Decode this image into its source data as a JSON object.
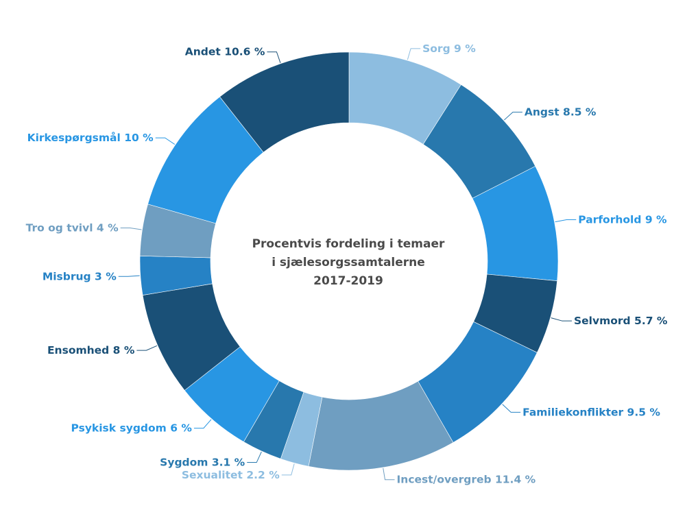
{
  "chart_data": {
    "type": "pie",
    "variant": "donut",
    "title": "Procentvis fordeling i temaer i sjælesorgssamtalerne 2017-2019",
    "title_lines": [
      "Procentvis fordeling i temaer",
      "i sjælesorgssamtalerne",
      "2017-2019"
    ],
    "start": "12 o'clock",
    "direction": "clockwise",
    "slices": [
      {
        "name": "Sorg",
        "value": 9,
        "label": "Sorg 9 %",
        "color": "#8dbde0"
      },
      {
        "name": "Angst",
        "value": 8.5,
        "label": "Angst 8.5 %",
        "color": "#2878ad"
      },
      {
        "name": "Parforhold",
        "value": 9,
        "label": "Parforhold 9 %",
        "color": "#2896e3"
      },
      {
        "name": "Selvmord",
        "value": 5.7,
        "label": "Selvmord 5.7 %",
        "color": "#1a5077"
      },
      {
        "name": "Familiekonflikter",
        "value": 9.5,
        "label": "Familiekonflikter 9.5 %",
        "color": "#2682c5"
      },
      {
        "name": "Incest/overgreb",
        "value": 11.4,
        "label": "Incest/overgreb 11.4 %",
        "color": "#6f9ec1"
      },
      {
        "name": "Sexualitet",
        "value": 2.2,
        "label": "Sexualitet 2.2 %",
        "color": "#8dbde0"
      },
      {
        "name": "Sygdom",
        "value": 3.1,
        "label": "Sygdom 3.1 %",
        "color": "#2878ad"
      },
      {
        "name": "Psykisk sygdom",
        "value": 6,
        "label": "Psykisk sygdom 6 %",
        "color": "#2896e3"
      },
      {
        "name": "Ensomhed",
        "value": 8,
        "label": "Ensomhed 8 %",
        "color": "#1a5077"
      },
      {
        "name": "Misbrug",
        "value": 3,
        "label": "Misbrug 3 %",
        "color": "#2682c5"
      },
      {
        "name": "Tro og tvivl",
        "value": 4,
        "label": "Tro og tvivl 4 %",
        "color": "#6f9ec1"
      },
      {
        "name": "Kirkespørgsmål",
        "value": 10,
        "label": "Kirkespørgsmål 10 %",
        "color": "#2896e3"
      },
      {
        "name": "Andet",
        "value": 10.6,
        "label": "Andet 10.6 %",
        "color": "#1a5077"
      }
    ]
  }
}
